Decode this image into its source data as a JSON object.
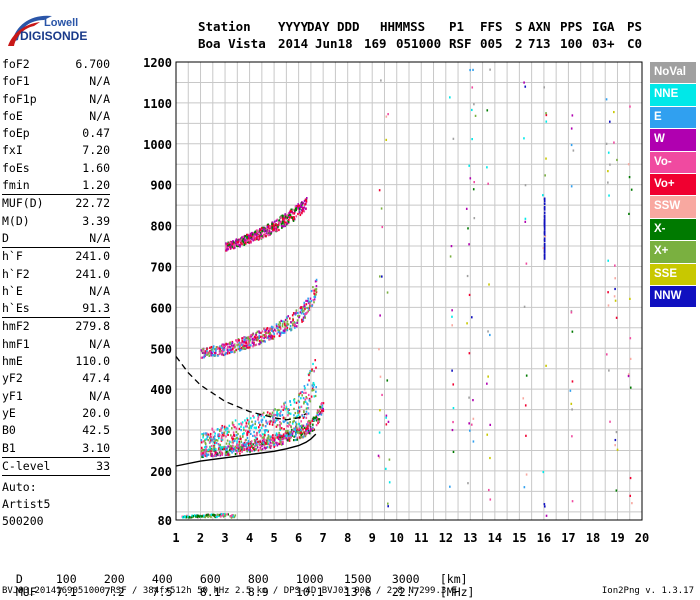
{
  "brand": {
    "line1": "Lowell",
    "line2": "DIGISONDE"
  },
  "header": {
    "labels": [
      "Station",
      "YYYY",
      "DAY",
      "DDD",
      "HHMMSS",
      "P1",
      "FFS",
      "S",
      "AXN",
      "PPS",
      "IGA",
      "PS"
    ],
    "values": [
      "Boa Vista",
      "2014",
      "Jun18",
      "169",
      "051000",
      "RSF",
      "005",
      "2",
      "713",
      "100",
      "03+",
      "C0"
    ]
  },
  "params": [
    [
      {
        "name": "foF2",
        "value": "6.700"
      },
      {
        "name": "foF1",
        "value": "N/A"
      },
      {
        "name": "foF1p",
        "value": "N/A"
      },
      {
        "name": "foE",
        "value": "N/A"
      },
      {
        "name": "foEp",
        "value": "0.47"
      },
      {
        "name": "fxI",
        "value": "7.20"
      },
      {
        "name": "foEs",
        "value": "1.60"
      },
      {
        "name": "fmin",
        "value": "1.20"
      }
    ],
    [
      {
        "name": "MUF(D)",
        "value": "22.72"
      },
      {
        "name": "M(D)",
        "value": "3.39"
      },
      {
        "name": "D",
        "value": "N/A"
      }
    ],
    [
      {
        "name": "h`F",
        "value": "241.0"
      },
      {
        "name": "h`F2",
        "value": "241.0"
      },
      {
        "name": "h`E",
        "value": "N/A"
      },
      {
        "name": "h`Es",
        "value": "91.3"
      }
    ],
    [
      {
        "name": "hmF2",
        "value": "279.8"
      },
      {
        "name": "hmF1",
        "value": "N/A"
      },
      {
        "name": "hmE",
        "value": "110.0"
      },
      {
        "name": "yF2",
        "value": "47.4"
      },
      {
        "name": "yF1",
        "value": "N/A"
      },
      {
        "name": "yE",
        "value": "20.0"
      },
      {
        "name": "B0",
        "value": "42.5"
      },
      {
        "name": "B1",
        "value": "3.10"
      }
    ],
    [
      {
        "name": "C-level",
        "value": "33"
      }
    ]
  ],
  "auto": [
    "Auto:",
    "Artist5",
    "500200"
  ],
  "legend": [
    {
      "label": "NoVal",
      "color": "#a0a0a0"
    },
    {
      "label": "NNE",
      "color": "#00e8e8"
    },
    {
      "label": "E",
      "color": "#30a0f0"
    },
    {
      "label": "W",
      "color": "#b000b0"
    },
    {
      "label": "Vo-",
      "color": "#f04aa0"
    },
    {
      "label": "Vo+",
      "color": "#f00030"
    },
    {
      "label": "SSW",
      "color": "#f8a8a0"
    },
    {
      "label": "X-",
      "color": "#007a00"
    },
    {
      "label": "X+",
      "color": "#7ab040"
    },
    {
      "label": "SSE",
      "color": "#c8c800"
    },
    {
      "label": "NNW",
      "color": "#1010c0"
    }
  ],
  "footer": {
    "d_label": "D",
    "d_values": [
      "100",
      "200",
      "400",
      "600",
      "800",
      "1000",
      "1500",
      "3000"
    ],
    "d_unit": "[km]",
    "muf_label": "MUF",
    "muf_values": [
      "7.1",
      "7.2",
      "7.5",
      "8.1",
      "8.9",
      "10.1",
      "13.6",
      "22.7"
    ],
    "muf_unit": "[MHz]",
    "file_line": "BVJ03_2014169051000.RSF / 384fx512h 50 kHz 2.5 km / DPS-4D BVJ03 003 / 2.8 N 299.3 E",
    "version": "Ion2Png v. 1.3.17"
  },
  "chart_data": {
    "type": "scatter",
    "xlim": [
      1,
      20
    ],
    "ylim": [
      80,
      1200
    ],
    "x_ticks": [
      1,
      2,
      3,
      4,
      5,
      6,
      7,
      8,
      9,
      10,
      11,
      12,
      13,
      14,
      15,
      16,
      17,
      18,
      19,
      20
    ],
    "y_ticks": [
      80,
      200,
      300,
      400,
      500,
      600,
      700,
      800,
      900,
      1000,
      1100,
      1200
    ],
    "x_tick_labels": [
      "1",
      "2",
      "3",
      "4",
      "5",
      "6",
      "7",
      "8",
      "9",
      "10",
      "11",
      "12",
      "13",
      "14",
      "15",
      "16",
      "17",
      "18",
      "19",
      "20"
    ],
    "y_tick_labels": [
      "80",
      "200",
      "300",
      "400",
      "500",
      "600",
      "700",
      "800",
      "900",
      "1000",
      "1100",
      "1200"
    ],
    "grid": true,
    "traces": [
      {
        "name": "F2 O-trace",
        "x": [
          2.0,
          2.5,
          3.0,
          3.5,
          4.0,
          4.5,
          5.0,
          5.5,
          6.0,
          6.3,
          6.6,
          6.8,
          7.0
        ],
        "y": [
          245,
          248,
          252,
          256,
          262,
          268,
          276,
          285,
          295,
          305,
          320,
          340,
          370
        ]
      },
      {
        "name": "F2 band",
        "x": [
          2.0,
          3.0,
          4.0,
          5.0,
          5.5,
          6.0,
          6.3,
          6.5,
          6.7
        ],
        "y": [
          270,
          290,
          300,
          315,
          330,
          350,
          380,
          410,
          440
        ]
      },
      {
        "name": "2nd hop",
        "x": [
          2.0,
          3.0,
          4.0,
          5.0,
          5.5,
          6.0,
          6.3,
          6.5,
          6.7
        ],
        "y": [
          490,
          500,
          520,
          545,
          560,
          580,
          600,
          625,
          650
        ]
      },
      {
        "name": "3rd hop",
        "x": [
          3.0,
          3.5,
          4.0,
          4.5,
          5.0,
          5.5,
          6.0,
          6.3
        ],
        "y": [
          750,
          760,
          772,
          785,
          800,
          820,
          840,
          860
        ]
      },
      {
        "name": "Es",
        "x": [
          1.2,
          1.4,
          1.6,
          1.8,
          2.0,
          2.2,
          2.6,
          3.0,
          3.2,
          3.4
        ],
        "y": [
          91,
          91,
          91,
          92,
          91,
          93,
          93,
          95,
          92,
          91
        ]
      }
    ],
    "profile": {
      "x": [
        1.0,
        2.0,
        3.0,
        4.0,
        5.0,
        5.5,
        6.0,
        6.3,
        6.5,
        6.7
      ],
      "y": [
        212,
        224,
        232,
        240,
        248,
        254,
        262,
        270,
        278,
        290
      ]
    },
    "profile_dashed": {
      "x": [
        1.0,
        1.5,
        2.0,
        3.0,
        4.0,
        5.0,
        5.5,
        6.0,
        6.3
      ],
      "y": [
        480,
        440,
        410,
        370,
        345,
        330,
        325,
        330,
        340
      ]
    }
  }
}
